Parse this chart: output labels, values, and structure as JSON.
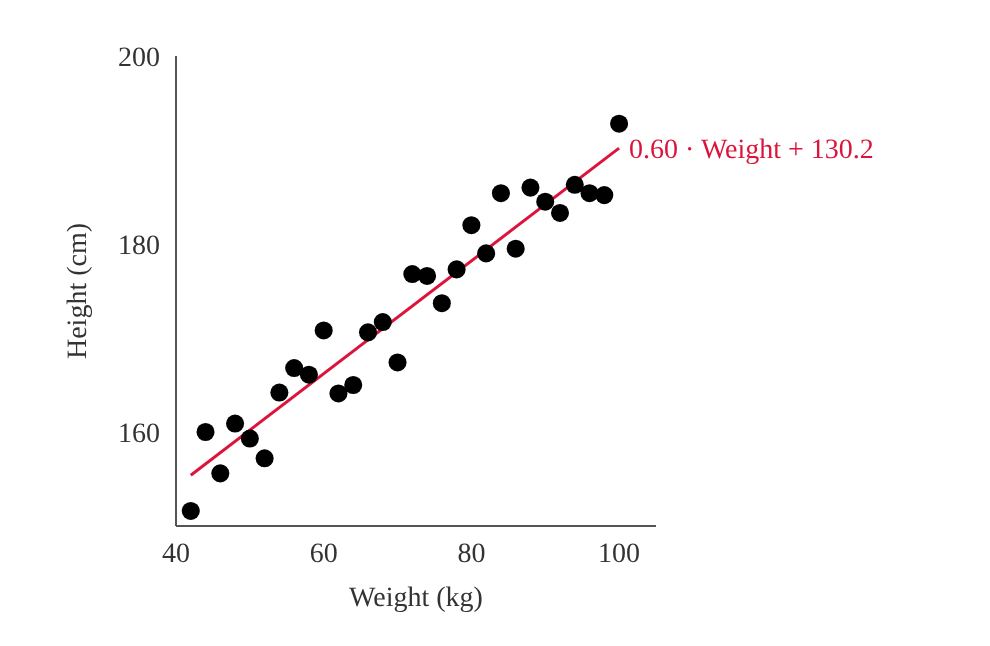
{
  "chart_data": {
    "type": "scatter",
    "xlabel": "Weight (kg)",
    "ylabel": "Height (cm)",
    "xlim": [
      40,
      105
    ],
    "ylim": [
      150,
      200
    ],
    "xticks": [
      40,
      60,
      80,
      100
    ],
    "yticks": [
      160,
      180,
      200
    ],
    "grid": false,
    "series": [
      {
        "color": "#000000",
        "marker": "circle",
        "x": [
          42,
          44,
          46,
          48,
          50,
          52,
          54,
          56,
          58,
          60,
          62,
          64,
          66,
          68,
          70,
          72,
          74,
          76,
          78,
          80,
          82,
          84,
          86,
          88,
          90,
          92,
          94,
          96,
          98,
          100
        ],
        "values": [
          151.6,
          160,
          155.6,
          160.9,
          159.3,
          157.2,
          164.2,
          166.8,
          166.1,
          170.8,
          164.1,
          165,
          170.6,
          171.7,
          167.4,
          176.8,
          176.6,
          173.7,
          177.3,
          182,
          179,
          185.4,
          179.5,
          186,
          184.5,
          183.3,
          186.3,
          185.4,
          185.2,
          192.8
        ]
      },
      {
        "type": "line",
        "color": "#dc143c",
        "x": [
          42,
          100
        ],
        "values": [
          155.4,
          190.2
        ]
      }
    ],
    "annotations": [
      {
        "text": "0.60 · Weight + 130.2",
        "x": 100,
        "y": 190.2
      }
    ]
  }
}
